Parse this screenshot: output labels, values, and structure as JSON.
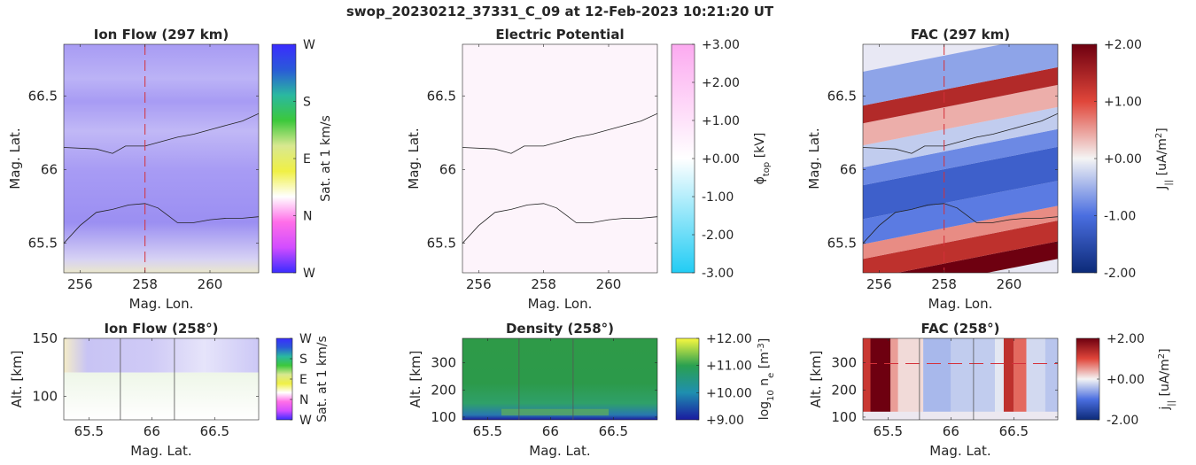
{
  "figure": {
    "title": "swop_20230212_37331_C_09 at 12-Feb-2023 10:21:20 UT"
  },
  "chart_data": [
    {
      "id": "ion-flow-map",
      "type": "heatmap",
      "title": "Ion Flow (297 km)",
      "xlabel": "Mag. Lon.",
      "ylabel": "Mag. Lat.",
      "xlim": [
        255.5,
        261.5
      ],
      "ylim": [
        65.3,
        66.85
      ],
      "xticks": [
        256,
        258,
        260
      ],
      "yticks": [
        65.5,
        66,
        66.5
      ],
      "xtick_labels": [
        "256",
        "258",
        "260"
      ],
      "ytick_labels": [
        "65.5",
        "66",
        "66.5"
      ],
      "colorbar": {
        "label": "Sat. at 1 km/s",
        "tick_labels": [
          "W",
          "N",
          "E",
          "S",
          "W"
        ],
        "colors": [
          "#3a2cff",
          "#d24dff",
          "#ff6ee8",
          "#ffffff",
          "#f0f045",
          "#d8e890",
          "#3cc83c",
          "#2ab8a0",
          "#2a5ad8",
          "#3a2cff"
        ]
      },
      "dominant_color": "#a496f4",
      "marker_x": 258,
      "boundary_lines": [
        {
          "x": [
            255.5,
            256.5,
            257.0,
            257.4,
            258.0,
            258.5,
            259.0,
            259.5,
            260.0,
            260.5,
            261.0,
            261.5
          ],
          "y": [
            66.15,
            66.14,
            66.11,
            66.16,
            66.16,
            66.19,
            66.22,
            66.24,
            66.27,
            66.3,
            66.33,
            66.38
          ]
        },
        {
          "x": [
            255.5,
            256.0,
            256.5,
            257.0,
            257.5,
            258.0,
            258.4,
            258.7,
            259.0,
            259.5,
            260.0,
            260.5,
            261.0,
            261.5
          ],
          "y": [
            65.5,
            65.62,
            65.71,
            65.73,
            65.76,
            65.77,
            65.74,
            65.69,
            65.64,
            65.64,
            65.66,
            65.67,
            65.67,
            65.68
          ]
        }
      ]
    },
    {
      "id": "electric-potential-map",
      "type": "heatmap",
      "title": "Electric Potential",
      "xlabel": "Mag. Lon.",
      "ylabel": "Mag. Lat.",
      "xlim": [
        255.5,
        261.5
      ],
      "ylim": [
        65.3,
        66.85
      ],
      "xticks": [
        256,
        258,
        260
      ],
      "yticks": [
        65.5,
        66,
        66.5
      ],
      "xtick_labels": [
        "256",
        "258",
        "260"
      ],
      "ytick_labels": [
        "65.5",
        "66",
        "66.5"
      ],
      "colorbar": {
        "label": "ϕtop [kV]",
        "label_main": "ϕ",
        "label_sub": "top",
        "label_unit": " [kV]",
        "min": -3.0,
        "max": 3.0,
        "tick_labels": [
          "-3.00",
          "-2.00",
          "-1.00",
          "+0.00",
          "+1.00",
          "+2.00",
          "+3.00"
        ],
        "colors": [
          "#22ccf4",
          "#ffffff",
          "#fcaaf0"
        ]
      },
      "dominant_color": "#fdf4fb",
      "boundary_lines": [
        {
          "x": [
            255.5,
            256.5,
            257.0,
            257.4,
            258.0,
            258.5,
            259.0,
            259.5,
            260.0,
            260.5,
            261.0,
            261.5
          ],
          "y": [
            66.15,
            66.14,
            66.11,
            66.16,
            66.16,
            66.19,
            66.22,
            66.24,
            66.27,
            66.3,
            66.33,
            66.38
          ]
        },
        {
          "x": [
            255.5,
            256.0,
            256.5,
            257.0,
            257.5,
            258.0,
            258.4,
            258.7,
            259.0,
            259.5,
            260.0,
            260.5,
            261.0,
            261.5
          ],
          "y": [
            65.5,
            65.62,
            65.71,
            65.73,
            65.76,
            65.77,
            65.74,
            65.69,
            65.64,
            65.64,
            65.66,
            65.67,
            65.67,
            65.68
          ]
        }
      ]
    },
    {
      "id": "fac-map",
      "type": "heatmap",
      "title": "FAC (297 km)",
      "xlabel": "Mag. Lon.",
      "ylabel": "Mag. Lat.",
      "xlim": [
        255.5,
        261.5
      ],
      "ylim": [
        65.3,
        66.85
      ],
      "xticks": [
        256,
        258,
        260
      ],
      "yticks": [
        65.5,
        66,
        66.5
      ],
      "xtick_labels": [
        "256",
        "258",
        "260"
      ],
      "ytick_labels": [
        "65.5",
        "66",
        "66.5"
      ],
      "colorbar": {
        "label": "J|| [uA/m2]",
        "label_main": "J",
        "label_sub": "||",
        "label_unit": " [uA/m",
        "label_sup": "2",
        "label_close": "]",
        "min": -2.0,
        "max": 2.0,
        "tick_labels": [
          "-2.00",
          "-1.00",
          "+0.00",
          "+1.00",
          "+2.00"
        ],
        "colors": [
          "#0c2a78",
          "#4a6ee0",
          "#f4f4f4",
          "#e0463a",
          "#6e0010"
        ]
      },
      "marker_x": 258,
      "bands": [
        {
          "y0": 65.32,
          "y1": 65.44,
          "value": 2.0
        },
        {
          "y0": 65.44,
          "y1": 65.58,
          "value": 1.3
        },
        {
          "y0": 65.58,
          "y1": 65.68,
          "value": 0.6
        },
        {
          "y0": 65.68,
          "y1": 65.85,
          "value": -0.9
        },
        {
          "y0": 65.85,
          "y1": 66.08,
          "value": -1.2
        },
        {
          "y0": 66.08,
          "y1": 66.2,
          "value": -0.8
        },
        {
          "y0": 66.2,
          "y1": 66.35,
          "value": -0.3
        },
        {
          "y0": 66.35,
          "y1": 66.5,
          "value": 0.4
        },
        {
          "y0": 66.5,
          "y1": 66.62,
          "value": 1.4
        },
        {
          "y0": 66.62,
          "y1": 66.85,
          "value": -0.6
        }
      ],
      "boundary_lines": [
        {
          "x": [
            255.5,
            256.5,
            257.0,
            257.4,
            258.0,
            258.5,
            259.0,
            259.5,
            260.0,
            260.5,
            261.0,
            261.5
          ],
          "y": [
            66.15,
            66.14,
            66.11,
            66.16,
            66.16,
            66.19,
            66.22,
            66.24,
            66.27,
            66.3,
            66.33,
            66.38
          ]
        },
        {
          "x": [
            255.5,
            256.0,
            256.5,
            257.0,
            257.5,
            258.0,
            258.4,
            258.7,
            259.0,
            259.5,
            260.0,
            260.5,
            261.0,
            261.5
          ],
          "y": [
            65.5,
            65.62,
            65.71,
            65.73,
            65.76,
            65.77,
            65.74,
            65.69,
            65.64,
            65.64,
            65.66,
            65.67,
            65.67,
            65.68
          ]
        }
      ]
    },
    {
      "id": "ion-flow-profile",
      "type": "heatmap",
      "title": "Ion Flow (258°)",
      "xlabel": "Mag. Lat.",
      "ylabel": "Alt. [km]",
      "xlim": [
        65.3,
        66.85
      ],
      "ylim": [
        80,
        150
      ],
      "xticks": [
        65.5,
        66,
        66.5
      ],
      "yticks": [
        100,
        150
      ],
      "xtick_labels": [
        "65.5",
        "66",
        "66.5"
      ],
      "ytick_labels": [
        "100",
        "150"
      ],
      "colorbar": {
        "label": "Sat. at 1 km/s",
        "tick_labels": [
          "W",
          "N",
          "E",
          "S",
          "W"
        ],
        "colors": [
          "#3a2cff",
          "#d24dff",
          "#ff6ee8",
          "#ffffff",
          "#f0f045",
          "#d8e890",
          "#3cc83c",
          "#2ab8a0",
          "#2a5ad8",
          "#3a2cff"
        ]
      },
      "vertical_lines_x": [
        65.75,
        66.18
      ]
    },
    {
      "id": "density-profile",
      "type": "heatmap",
      "title": "Density (258°)",
      "xlabel": "Mag. Lat.",
      "ylabel": "Alt. [km]",
      "xlim": [
        65.3,
        66.85
      ],
      "ylim": [
        90,
        390
      ],
      "xticks": [
        65.5,
        66,
        66.5
      ],
      "yticks": [
        100,
        200,
        300
      ],
      "xtick_labels": [
        "65.5",
        "66",
        "66.5"
      ],
      "ytick_labels": [
        "100",
        "200",
        "300"
      ],
      "colorbar": {
        "label": "log10 ne [m-3]",
        "label_main": "log",
        "label_sub": "10",
        "label_mid": " n",
        "label_sub2": "e",
        "label_unit": " [m",
        "label_sup": "-3",
        "label_close": "]",
        "min": 9.0,
        "max": 12.0,
        "tick_labels": [
          "+9.00",
          "+10.00",
          "+11.00",
          "+12.00"
        ],
        "colors": [
          "#1a1aa0",
          "#1f8fb0",
          "#2aa050",
          "#f8f840"
        ]
      },
      "vertical_lines_x": [
        65.75,
        66.18
      ]
    },
    {
      "id": "fac-profile",
      "type": "heatmap",
      "title": "FAC (258°)",
      "xlabel": "Mag. Lat.",
      "ylabel": "Alt. [km]",
      "xlim": [
        65.3,
        66.85
      ],
      "ylim": [
        90,
        390
      ],
      "xticks": [
        65.5,
        66,
        66.5
      ],
      "yticks": [
        100,
        200,
        300
      ],
      "xtick_labels": [
        "65.5",
        "66",
        "66.5"
      ],
      "ytick_labels": [
        "100",
        "200",
        "300"
      ],
      "colorbar": {
        "label": "j|| [uA/m2]",
        "label_main": "j",
        "label_sub": "||",
        "label_unit": " [uA/m",
        "label_sup": "2",
        "label_close": "]",
        "min": -2.0,
        "max": 2.0,
        "tick_labels": [
          "-2.00",
          "+0.00",
          "+2.00"
        ],
        "colors": [
          "#0c2a78",
          "#4a6ee0",
          "#f4f4f4",
          "#e0463a",
          "#6e0010"
        ]
      },
      "marker_y": 297,
      "vertical_lines_x": [
        65.75,
        66.18
      ],
      "columns": [
        {
          "x0": 65.3,
          "x1": 65.36,
          "value": 1.2
        },
        {
          "x0": 65.36,
          "x1": 65.52,
          "value": 2.0
        },
        {
          "x0": 65.52,
          "x1": 65.58,
          "value": 0.5
        },
        {
          "x0": 65.58,
          "x1": 65.78,
          "value": 0.15
        },
        {
          "x0": 65.78,
          "x1": 66.0,
          "value": -0.45
        },
        {
          "x0": 66.0,
          "x1": 66.35,
          "value": -0.3
        },
        {
          "x0": 66.35,
          "x1": 66.42,
          "value": -0.1
        },
        {
          "x0": 66.42,
          "x1": 66.5,
          "value": 1.3
        },
        {
          "x0": 66.5,
          "x1": 66.6,
          "value": 0.8
        },
        {
          "x0": 66.6,
          "x1": 66.75,
          "value": -0.2
        },
        {
          "x0": 66.75,
          "x1": 66.85,
          "value": -0.35
        }
      ]
    }
  ]
}
